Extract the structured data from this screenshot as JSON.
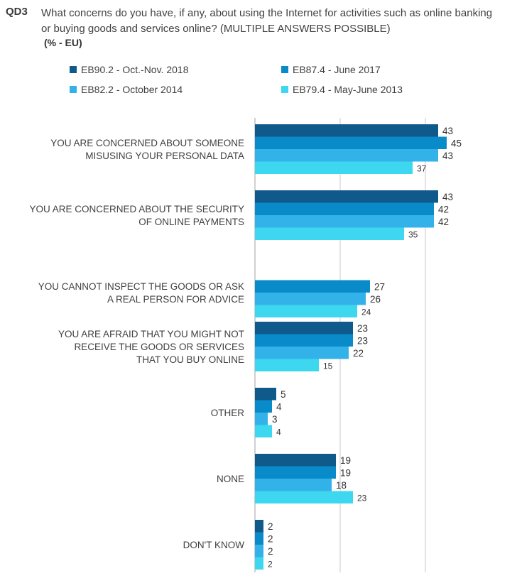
{
  "question": {
    "code": "QD3",
    "text": "What concerns do you have, if any, about using the Internet for activities such as online banking or buying goods and services online? (MULTIPLE ANSWERS POSSIBLE)",
    "unit": "(% - EU)"
  },
  "colors": {
    "series": [
      "#0f5a8a",
      "#0a8bc9",
      "#33b2ea",
      "#3dd8ef"
    ],
    "gridline": "#c8c8c8",
    "axis": "#a0a0a0"
  },
  "chart_data": {
    "type": "bar",
    "orientation": "horizontal",
    "grid": true,
    "legend": "top",
    "xlim": [
      0,
      50
    ],
    "categories": [
      [
        "YOU ARE CONCERNED ABOUT SOMEONE",
        "MISUSING YOUR PERSONAL DATA"
      ],
      [
        "YOU ARE CONCERNED ABOUT THE SECURITY",
        "OF ONLINE PAYMENTS"
      ],
      [
        "YOU CANNOT INSPECT THE GOODS OR ASK",
        "A REAL PERSON FOR ADVICE"
      ],
      [
        "YOU ARE AFRAID THAT YOU MIGHT NOT",
        "RECEIVE THE GOODS OR SERVICES",
        "THAT YOU BUY ONLINE"
      ],
      [
        "OTHER"
      ],
      [
        "NONE"
      ],
      [
        "DON'T KNOW"
      ]
    ],
    "series": [
      {
        "name": "EB90.2 - Oct.-Nov. 2018",
        "values": [
          43,
          43,
          null,
          23,
          5,
          19,
          2
        ]
      },
      {
        "name": "EB87.4 - June 2017",
        "values": [
          45,
          42,
          27,
          23,
          4,
          19,
          2
        ]
      },
      {
        "name": "EB82.2 - October 2014",
        "values": [
          43,
          42,
          26,
          22,
          3,
          18,
          2
        ]
      },
      {
        "name": "EB79.4 - May-June 2013",
        "values": [
          37,
          35,
          24,
          15,
          4,
          23,
          2
        ]
      }
    ]
  }
}
